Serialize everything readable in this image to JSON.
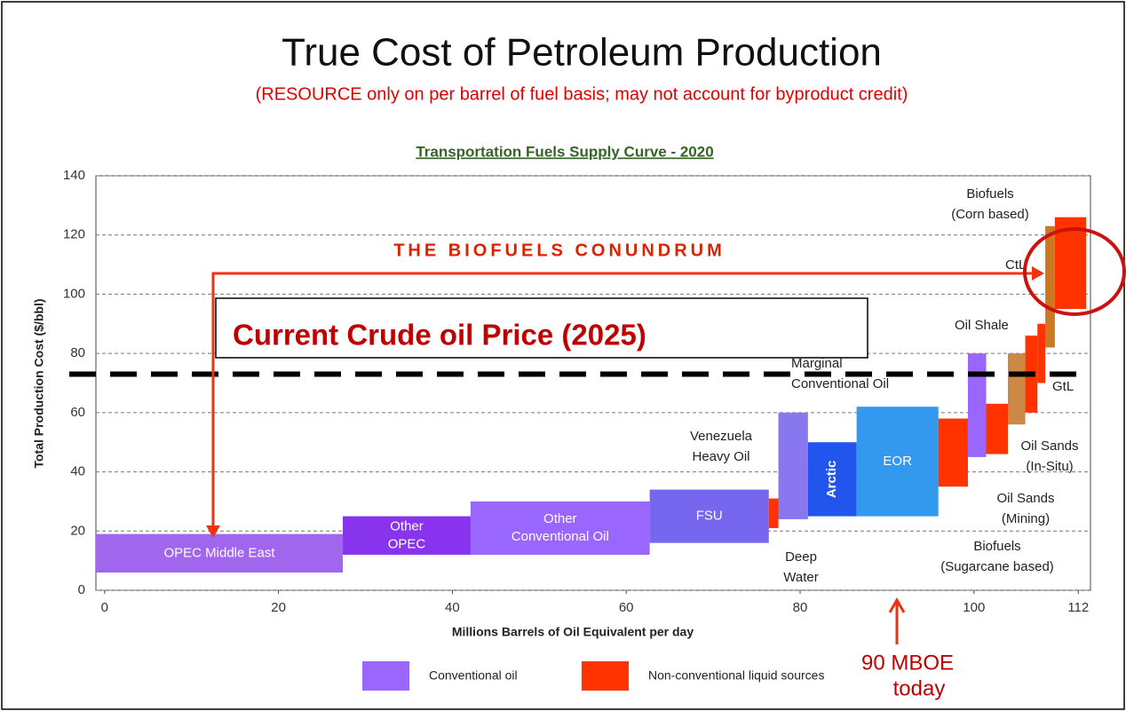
{
  "chart_data": {
    "type": "floating_bar",
    "title": "True Cost of Petroleum Production",
    "subtitle": "(RESOURCE only on per barrel of fuel basis; may not account for byproduct credit)",
    "chart_title": "Transportation Fuels Supply Curve - 2020",
    "banner": "THE BIOFUELS CONUNDRUM",
    "price_label": "Current Crude oil Price (2025)",
    "price_line": 73,
    "x_label": "Millions Barrels of Oil Equivalent per day",
    "y_label": "Total Production Cost ($/bbl)",
    "annotation": [
      "90 MBOE",
      "today"
    ],
    "xlim": [
      -1,
      113.4
    ],
    "ylim": [
      0,
      140
    ],
    "xticks": [
      0,
      20,
      40,
      60,
      80,
      100,
      112
    ],
    "yticks": [
      0,
      20,
      40,
      60,
      80,
      100,
      120,
      140
    ],
    "grid": true,
    "legend": [
      {
        "name": "Conventional oil",
        "color": "#9966ff"
      },
      {
        "name": "Non-conventional liquid sources",
        "color": "#ff3300"
      }
    ],
    "bars": [
      {
        "label": [
          "OPEC Middle East"
        ],
        "x": [
          -1,
          27.4
        ],
        "values": [
          6,
          19
        ],
        "color": "#a066ee"
      },
      {
        "label": [
          "Other",
          "OPEC"
        ],
        "x": [
          27.4,
          42.1
        ],
        "values": [
          12,
          25
        ],
        "color": "#8833ee"
      },
      {
        "label": [
          "Other",
          "Conventional Oil"
        ],
        "x": [
          42.1,
          62.7
        ],
        "values": [
          12,
          30
        ],
        "color": "#9966ff"
      },
      {
        "label": [
          "FSU"
        ],
        "x": [
          62.7,
          76.4
        ],
        "values": [
          16,
          34
        ],
        "color": "#7766ee"
      },
      {
        "label": [
          "Venezuela",
          "Heavy Oil"
        ],
        "x": [
          76.4,
          77.5
        ],
        "values": [
          21,
          31
        ],
        "color": "#ff3300"
      },
      {
        "label": [
          "Deep",
          "Water"
        ],
        "x": [
          77.5,
          80.9
        ],
        "values": [
          24,
          60
        ],
        "color": "#8877ee"
      },
      {
        "label": [
          "Arctic"
        ],
        "x": [
          80.9,
          86.5
        ],
        "values": [
          25,
          50
        ],
        "color": "#2255ee"
      },
      {
        "label": [
          "EOR"
        ],
        "x": [
          86.5,
          95.9
        ],
        "values": [
          25,
          62
        ],
        "color": "#3399ee"
      },
      {
        "label": [
          "Biofuels",
          "(Sugarcane based)"
        ],
        "x": [
          95.9,
          99.3
        ],
        "values": [
          35,
          58
        ],
        "color": "#ff3300"
      },
      {
        "label": [
          "Marginal",
          "Conventional Oil"
        ],
        "x": [
          99.3,
          101.4
        ],
        "values": [
          45,
          80
        ],
        "color": "#9966ff"
      },
      {
        "label": [
          "Oil Sands",
          "(Mining)"
        ],
        "x": [
          101.4,
          103.9
        ],
        "values": [
          46,
          63
        ],
        "color": "#ff3300"
      },
      {
        "label": [
          "Oil Sands",
          "(In-Situ)"
        ],
        "x": [
          103.9,
          105.9
        ],
        "values": [
          56,
          80
        ],
        "color": "#cc8844"
      },
      {
        "label": [
          "Oil Shale"
        ],
        "x": [
          105.9,
          107.3
        ],
        "values": [
          60,
          86
        ],
        "color": "#ff3300"
      },
      {
        "label": [
          "GtL"
        ],
        "x": [
          107.3,
          108.2
        ],
        "values": [
          70,
          90
        ],
        "color": "#ff3300"
      },
      {
        "label": [
          "CtL"
        ],
        "x": [
          108.2,
          109.3
        ],
        "values": [
          82,
          123
        ],
        "color": "#cc7722"
      },
      {
        "label": [
          "Biofuels",
          "(Corn based)"
        ],
        "x": [
          109.3,
          112.9
        ],
        "values": [
          95,
          126
        ],
        "color": "#ff3300"
      }
    ]
  }
}
